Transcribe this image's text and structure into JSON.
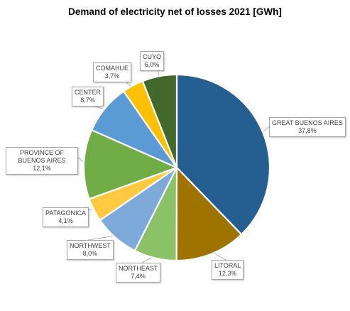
{
  "chart_data": {
    "type": "pie",
    "title": "Demand of electricity net of losses 2021 [GWh]",
    "slices": [
      {
        "label": "GREAT BUENOS AIRES",
        "pct_label": "37,8%",
        "value": 37.8,
        "color": "#255e91"
      },
      {
        "label": "LITORAL",
        "pct_label": "12,3%",
        "value": 12.3,
        "color": "#9e7300"
      },
      {
        "label": "NORTHEAST",
        "pct_label": "7,4%",
        "value": 7.4,
        "color": "#8bc268"
      },
      {
        "label": "NORTHWEST",
        "pct_label": "8,0%",
        "value": 8.0,
        "color": "#7daadb"
      },
      {
        "label": "PATAGONICA",
        "pct_label": "4,1%",
        "value": 4.1,
        "color": "#ffc940"
      },
      {
        "label": "PROVINCE OF BUENOS AIRES",
        "pct_label": "12,1%",
        "value": 12.1,
        "color": "#70ad47"
      },
      {
        "label": "CENTER",
        "pct_label": "8,7%",
        "value": 8.7,
        "color": "#5b9bd5"
      },
      {
        "label": "COMAHUE",
        "pct_label": "3,7%",
        "value": 3.7,
        "color": "#ffc000"
      },
      {
        "label": "CUYO",
        "pct_label": "6,0%",
        "value": 6.0,
        "color": "#43682b"
      }
    ],
    "start_angle": "12 o'clock",
    "direction": "clockwise",
    "legend": "none",
    "data_labels": "callouts"
  }
}
